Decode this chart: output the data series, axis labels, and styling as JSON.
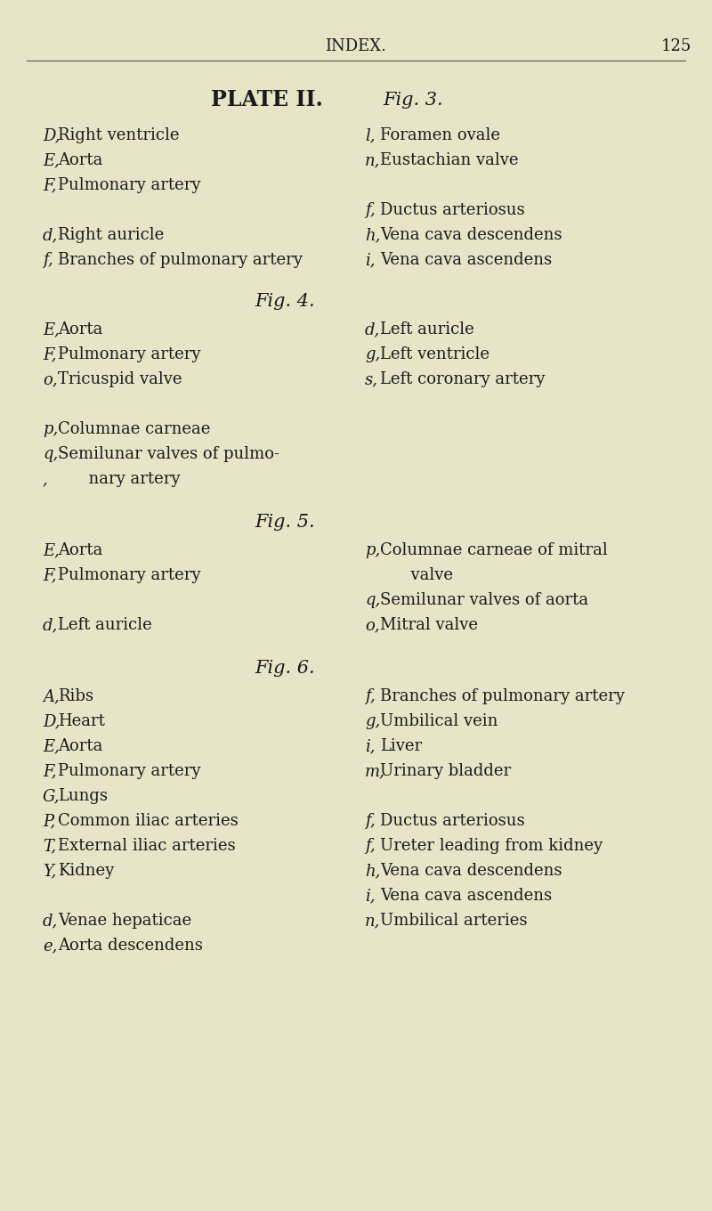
{
  "bg_color": "#e8e4c8",
  "header_text": "INDEX.",
  "page_number": "125",
  "plate_title": "PLATE II.",
  "plate_fig": "Fig. 3.",
  "fig3_left": [
    [
      "D",
      "Right ventricle"
    ],
    [
      "E",
      "Aorta"
    ],
    [
      "F",
      "Pulmonary artery"
    ],
    [
      "",
      ""
    ],
    [
      "d",
      "Right auricle"
    ],
    [
      "f",
      "Branches of pulmonary artery"
    ]
  ],
  "fig3_right": [
    [
      "l",
      "Foramen ovale"
    ],
    [
      "n",
      "Eustachian valve"
    ],
    [
      "",
      ""
    ],
    [
      "f",
      "Ductus arteriosus"
    ],
    [
      "h",
      "Vena cava descendens"
    ],
    [
      "i",
      "Vena cava ascendens"
    ]
  ],
  "fig4_title": "Fig. 4.",
  "fig4_left": [
    [
      "E",
      "Aorta"
    ],
    [
      "F",
      "Pulmonary artery"
    ],
    [
      "o",
      "Tricuspid valve"
    ],
    [
      "",
      ""
    ],
    [
      "p",
      "Columnae carneae"
    ],
    [
      "q",
      "Semilunar valves of pulmo-"
    ],
    [
      "",
      "      nary artery"
    ]
  ],
  "fig4_right": [
    [
      "d",
      "Left auricle"
    ],
    [
      "g",
      "Left ventricle"
    ],
    [
      "s",
      "Left coronary artery"
    ]
  ],
  "fig5_title": "Fig. 5.",
  "fig5_left": [
    [
      "E",
      "Aorta"
    ],
    [
      "F",
      "Pulmonary artery"
    ],
    [
      "",
      ""
    ],
    [
      "d",
      "Left auricle"
    ]
  ],
  "fig5_right": [
    [
      "p",
      "Columnae carneae of mitral"
    ],
    [
      "",
      "      valve"
    ],
    [
      "q",
      "Semilunar valves of aorta"
    ],
    [
      "o",
      "Mitral valve"
    ]
  ],
  "fig6_title": "Fig. 6.",
  "fig6_left": [
    [
      "A",
      "Ribs"
    ],
    [
      "D",
      "Heart"
    ],
    [
      "E",
      "Aorta"
    ],
    [
      "F",
      "Pulmonary artery"
    ],
    [
      "G",
      "Lungs"
    ],
    [
      "P",
      "Common iliac arteries"
    ],
    [
      "T",
      "External iliac arteries"
    ],
    [
      "Y",
      "Kidney"
    ],
    [
      "",
      ""
    ],
    [
      "d",
      "Venae hepaticae"
    ],
    [
      "e",
      "Aorta descendens"
    ]
  ],
  "fig6_right": [
    [
      "f",
      "Branches of pulmonary artery"
    ],
    [
      "g",
      "Umbilical vein"
    ],
    [
      "i",
      "Liver"
    ],
    [
      "m",
      "Urinary bladder"
    ],
    [
      "",
      ""
    ],
    [
      "f",
      "Ductus arteriosus"
    ],
    [
      "f",
      "Ureter leading from kidney"
    ],
    [
      "h",
      "Vena cava descendens"
    ],
    [
      "i",
      "Vena cava ascendens"
    ],
    [
      "n",
      "Umbilical arteries"
    ]
  ]
}
